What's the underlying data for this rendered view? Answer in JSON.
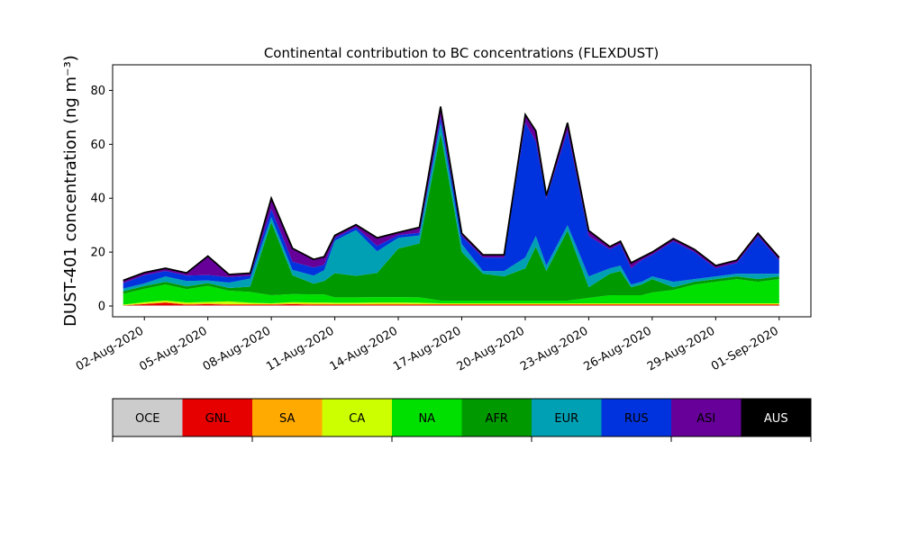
{
  "chart_data": {
    "type": "area",
    "stacked": true,
    "title": "Continental contribution to BC concentrations (FLEXDUST)",
    "xlabel": "",
    "ylabel": "DUST-401 concentration (ng m⁻³)",
    "ylim": [
      -4,
      89.5
    ],
    "xlim": [
      "2020-07-31T12:00",
      "2020-09-02T12:00"
    ],
    "yticks": [
      "0",
      "20",
      "40",
      "60",
      "80"
    ],
    "xticks": [
      "02-Aug-2020",
      "05-Aug-2020",
      "08-Aug-2020",
      "11-Aug-2020",
      "14-Aug-2020",
      "17-Aug-2020",
      "20-Aug-2020",
      "23-Aug-2020",
      "26-Aug-2020",
      "29-Aug-2020",
      "01-Sep-2020"
    ],
    "grid": false,
    "legend": {
      "placement": "below chart"
    },
    "x": [
      "2020-08-01",
      "2020-08-02",
      "2020-08-03",
      "2020-08-04",
      "2020-08-05",
      "2020-08-06",
      "2020-08-07",
      "2020-08-08",
      "2020-08-09",
      "2020-08-10",
      "2020-08-10T12:00",
      "2020-08-11",
      "2020-08-12",
      "2020-08-13",
      "2020-08-14",
      "2020-08-15",
      "2020-08-16",
      "2020-08-17",
      "2020-08-18",
      "2020-08-19",
      "2020-08-20",
      "2020-08-20T12:00",
      "2020-08-21",
      "2020-08-22",
      "2020-08-23",
      "2020-08-24",
      "2020-08-24T12:00",
      "2020-08-25",
      "2020-08-25T12:00",
      "2020-08-26",
      "2020-08-27",
      "2020-08-28",
      "2020-08-29",
      "2020-08-30",
      "2020-08-31",
      "2020-09-01"
    ],
    "series": [
      {
        "name": "OCE",
        "color": "#cccccc",
        "values": [
          0.2,
          0.2,
          0.2,
          0.2,
          0.2,
          0.2,
          0.2,
          0.2,
          0.2,
          0.2,
          0.2,
          0.2,
          0.2,
          0.2,
          0.2,
          0.2,
          0.2,
          0.2,
          0.2,
          0.2,
          0.2,
          0.2,
          0.2,
          0.2,
          0.2,
          0.2,
          0.2,
          0.2,
          0.2,
          0.2,
          0.2,
          0.2,
          0.2,
          0.2,
          0.2,
          0.2
        ]
      },
      {
        "name": "GNL",
        "color": "#e60000",
        "values": [
          0,
          0.5,
          1,
          0.3,
          0.5,
          0.3,
          0.3,
          0.3,
          0.5,
          0.3,
          0.3,
          0.3,
          0.3,
          0.3,
          0.3,
          0.3,
          0.3,
          0.3,
          0.3,
          0.3,
          0.3,
          0.3,
          0.3,
          0.3,
          0.3,
          0.3,
          0.3,
          0.3,
          0.3,
          0.3,
          0.3,
          0.3,
          0.3,
          0.3,
          0.3,
          0.3
        ]
      },
      {
        "name": "SA",
        "color": "#ffaa00",
        "values": [
          0.1,
          0.2,
          0.3,
          0.3,
          0.3,
          0.2,
          0.2,
          0.2,
          0.2,
          0.3,
          0.3,
          0.2,
          0.2,
          0.3,
          0.3,
          0.2,
          0.2,
          0.2,
          0.2,
          0.2,
          0.2,
          0.2,
          0.2,
          0.2,
          0.2,
          0.2,
          0.2,
          0.2,
          0.2,
          0.2,
          0.2,
          0.2,
          0.2,
          0.2,
          0.2,
          0.2
        ]
      },
      {
        "name": "CA",
        "color": "#ccff00",
        "values": [
          0.2,
          0.5,
          0.5,
          0.5,
          0.5,
          1,
          0.5,
          0.3,
          0.5,
          0.5,
          0.5,
          0.5,
          0.5,
          0.5,
          0.5,
          0.5,
          0.3,
          0.3,
          0.3,
          0.3,
          0.3,
          0.3,
          0.3,
          0.3,
          0.3,
          0.3,
          0.3,
          0.3,
          0.3,
          0.3,
          0.3,
          0.3,
          0.3,
          0.3,
          0.3,
          0.3
        ]
      },
      {
        "name": "NA",
        "color": "#00e000",
        "values": [
          4,
          5,
          6,
          5,
          6,
          4,
          4,
          3,
          3,
          3,
          3,
          2,
          2,
          2,
          2,
          2,
          1,
          1,
          1,
          1,
          1,
          1,
          1,
          1,
          2,
          3,
          3,
          3,
          3,
          4,
          5,
          7,
          8,
          9,
          8,
          9
        ]
      },
      {
        "name": "AFR",
        "color": "#009900",
        "values": [
          1,
          1,
          1,
          1,
          1,
          1,
          2,
          27,
          7,
          4,
          5,
          9,
          8,
          9,
          18,
          20,
          62,
          18,
          10,
          9,
          12,
          20,
          11,
          26,
          4,
          8,
          9,
          3,
          4,
          5,
          1,
          1,
          1,
          1,
          1,
          1
        ]
      },
      {
        "name": "EUR",
        "color": "#00a0b4",
        "values": [
          1,
          1,
          2,
          2,
          1,
          2,
          3,
          2,
          2,
          3,
          4,
          12,
          17,
          8,
          4,
          3,
          4,
          3,
          1,
          2,
          4,
          4,
          2,
          2,
          4,
          2,
          2,
          1,
          1,
          1,
          2,
          1,
          1,
          1,
          2,
          1
        ]
      },
      {
        "name": "RUS",
        "color": "#0033dd",
        "values": [
          2,
          3,
          2,
          2,
          2,
          2,
          1,
          3,
          3,
          3,
          2,
          1,
          1,
          2,
          1,
          1,
          2,
          3,
          5,
          5,
          50,
          35,
          25,
          35,
          15,
          7,
          8,
          6,
          8,
          8,
          15,
          10,
          3,
          4,
          14,
          5
        ]
      },
      {
        "name": "ASI",
        "color": "#660099",
        "values": [
          1,
          1,
          1,
          1,
          7,
          1,
          1,
          4,
          5,
          3,
          3,
          1,
          1,
          3,
          1,
          2,
          4,
          1,
          1,
          1,
          3,
          4,
          1,
          3,
          2,
          1,
          1,
          2,
          1,
          1,
          1,
          1,
          1,
          1,
          1,
          1
        ]
      },
      {
        "name": "AUS",
        "color": "#000000",
        "values": [
          0,
          0,
          0,
          0,
          0,
          0,
          0,
          0,
          0,
          0,
          0,
          0,
          0,
          0,
          0,
          0,
          0,
          0,
          0,
          0,
          0,
          0,
          0,
          0,
          0,
          0,
          0,
          0,
          0,
          0,
          0,
          0,
          0,
          0,
          0,
          0
        ]
      }
    ],
    "total_line_color": "#000000"
  }
}
